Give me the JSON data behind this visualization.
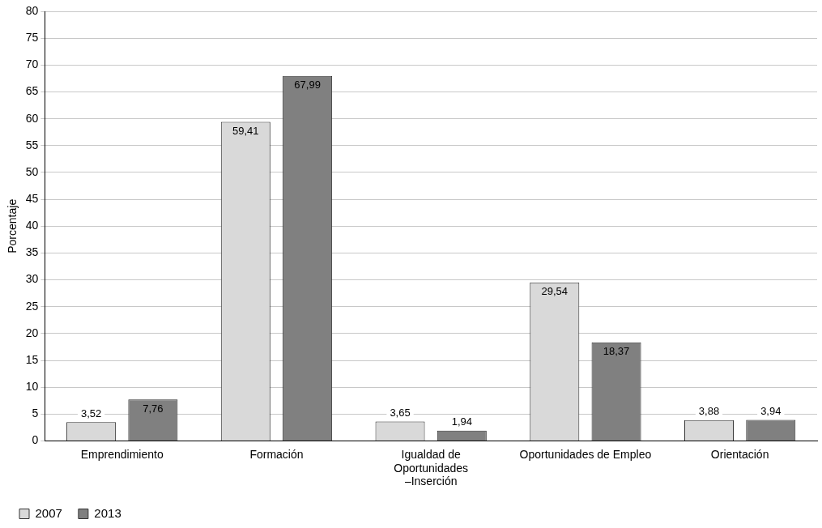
{
  "chart_data": {
    "type": "bar",
    "ylabel": "Porcentaje",
    "categories": [
      "Emprendimiento",
      "Formación",
      "Igualdad de Oportunidades –Inserción",
      "Oportunidades de Empleo",
      "Orientación"
    ],
    "series": [
      {
        "name": "2007",
        "color": "#d9d9d9",
        "values": [
          3.52,
          59.41,
          3.65,
          29.54,
          3.88
        ],
        "value_labels": [
          "3,52",
          "59,41",
          "3,65",
          "29,54",
          "3,88"
        ]
      },
      {
        "name": "2013",
        "color": "#808080",
        "values": [
          7.76,
          67.99,
          1.94,
          18.37,
          3.94
        ],
        "value_labels": [
          "7,76",
          "67,99",
          "1,94",
          "18,37",
          "3,94"
        ]
      }
    ],
    "ylim": [
      0,
      80
    ],
    "yticks": [
      0,
      5,
      10,
      15,
      20,
      25,
      30,
      35,
      40,
      45,
      50,
      55,
      60,
      65,
      70,
      75,
      80
    ],
    "grid": "y",
    "legend": "bottom left"
  }
}
